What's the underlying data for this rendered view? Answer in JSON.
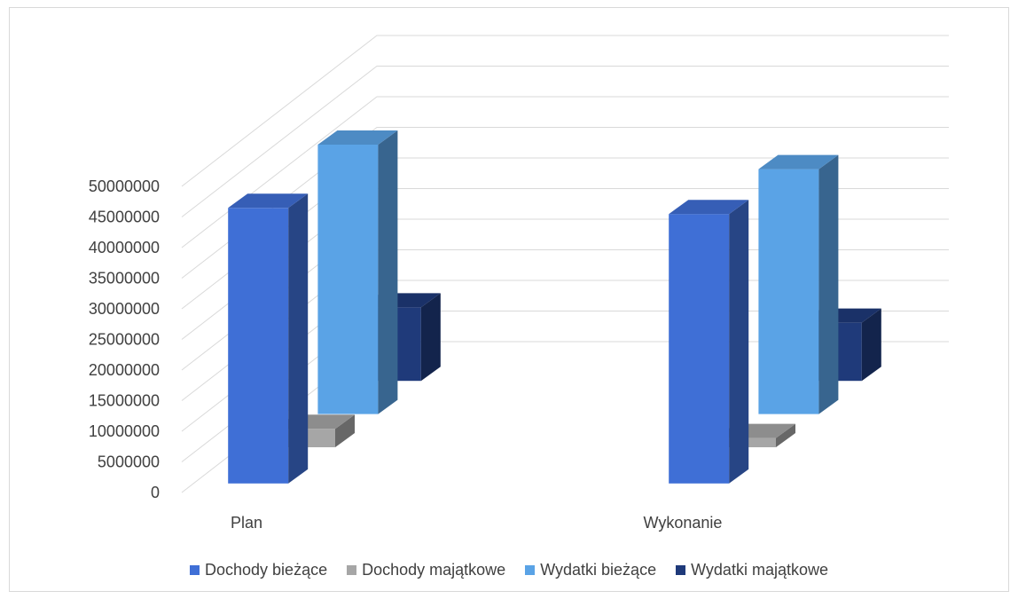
{
  "chart_data": {
    "type": "bar",
    "title": "",
    "xlabel": "",
    "ylabel": "",
    "categories": [
      "Plan",
      "Wykonanie"
    ],
    "ylim": [
      0,
      50000000
    ],
    "yticks": [
      "0",
      "5000000",
      "10000000",
      "15000000",
      "20000000",
      "25000000",
      "30000000",
      "35000000",
      "40000000",
      "45000000",
      "50000000"
    ],
    "legend_position": "bottom",
    "grid": true,
    "three_d": true,
    "series": [
      {
        "name": "Dochody bieżące",
        "values": [
          45000000,
          44000000
        ],
        "color": "#3f6fd6"
      },
      {
        "name": "Dochody majątkowe",
        "values": [
          3000000,
          1500000
        ],
        "color": "#a6a6a6"
      },
      {
        "name": "Wydatki bieżące",
        "values": [
          44000000,
          40000000
        ],
        "color": "#5aa3e6"
      },
      {
        "name": "Wydatki majątkowe",
        "values": [
          12000000,
          9500000
        ],
        "color": "#1f3a7a"
      }
    ]
  }
}
